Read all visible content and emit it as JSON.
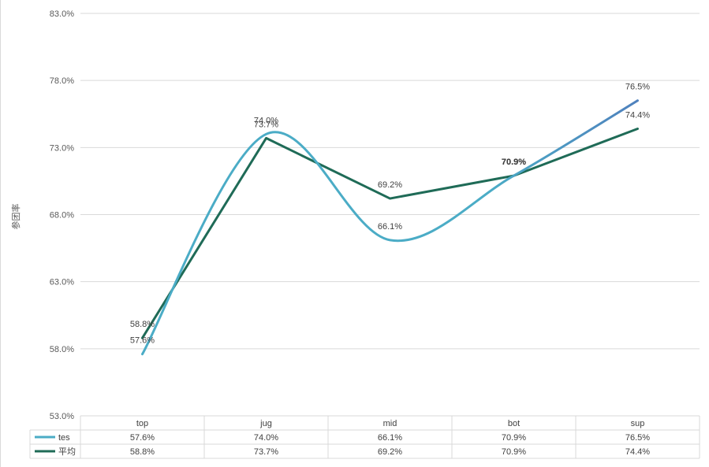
{
  "chart_data": {
    "type": "line",
    "title": "",
    "xlabel": "",
    "ylabel": "参团率",
    "ylim": [
      53.0,
      83.0
    ],
    "yticks": [
      "83.0%",
      "78.0%",
      "73.0%",
      "68.0%",
      "63.0%",
      "58.0%",
      "53.0%"
    ],
    "categories": [
      "top",
      "jug",
      "mid",
      "bot",
      "sup"
    ],
    "series": [
      {
        "name": "tes",
        "values": [
          57.6,
          74.0,
          66.1,
          70.9,
          76.5
        ],
        "labels": [
          "57.6%",
          "74.0%",
          "66.1%",
          "70.9%",
          "76.5%"
        ],
        "color": "#4bacc6",
        "end_color": "#4f81bd",
        "smooth": true
      },
      {
        "name": "平均",
        "values": [
          58.8,
          73.7,
          69.2,
          70.9,
          74.4
        ],
        "labels": [
          "58.8%",
          "73.7%",
          "69.2%",
          "70.9%",
          "74.4%"
        ],
        "color": "#1f6b57",
        "smooth": false
      }
    ],
    "data_table": true
  }
}
